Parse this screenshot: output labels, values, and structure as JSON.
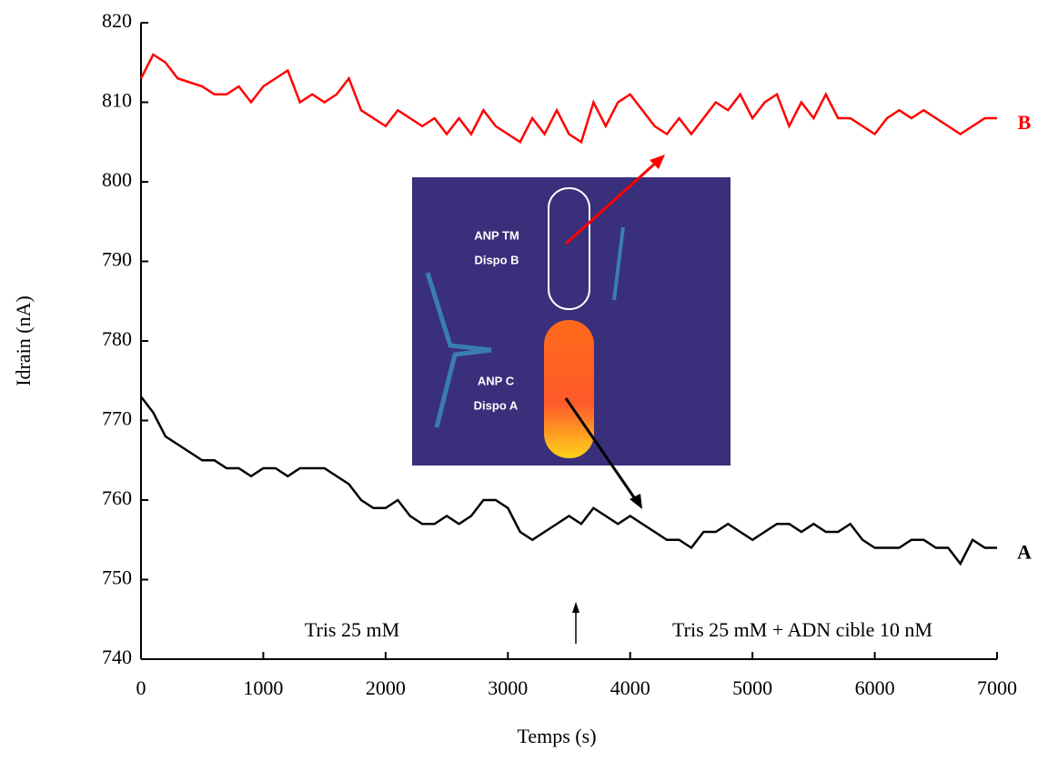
{
  "chart_data": {
    "type": "line",
    "x_label": "Temps (s)",
    "y_label": "Idrain (nA)",
    "x": [
      0,
      100,
      200,
      300,
      400,
      500,
      600,
      700,
      800,
      900,
      1000,
      1100,
      1200,
      1300,
      1400,
      1500,
      1600,
      1700,
      1800,
      1900,
      2000,
      2100,
      2200,
      2300,
      2400,
      2500,
      2600,
      2700,
      2800,
      2900,
      3000,
      3100,
      3200,
      3300,
      3400,
      3500,
      3600,
      3700,
      3800,
      3900,
      4000,
      4100,
      4200,
      4300,
      4400,
      4500,
      4600,
      4700,
      4800,
      4900,
      5000,
      5100,
      5200,
      5300,
      5400,
      5500,
      5600,
      5700,
      5800,
      5900,
      6000,
      6100,
      6200,
      6300,
      6400,
      6500,
      6600,
      6700,
      6800,
      6900,
      7000
    ],
    "series": [
      {
        "name": "B",
        "color": "#ff0000",
        "values": [
          813,
          816,
          815,
          813,
          812.5,
          812,
          811,
          811,
          812,
          810,
          812,
          813,
          814,
          810,
          811,
          810,
          811,
          813,
          809,
          808,
          807,
          809,
          808,
          807,
          808,
          806,
          808,
          806,
          809,
          807,
          806,
          805,
          808,
          806,
          809,
          806,
          805,
          810,
          807,
          810,
          811,
          809,
          807,
          806,
          808,
          806,
          808,
          810,
          809,
          811,
          808,
          810,
          811,
          807,
          810,
          808,
          811,
          808,
          808,
          807,
          806,
          808,
          809,
          808,
          809,
          808,
          807,
          806,
          807,
          808,
          808
        ]
      },
      {
        "name": "A",
        "color": "#000000",
        "values": [
          773,
          771,
          768,
          767,
          766,
          765,
          765,
          764,
          764,
          763,
          764,
          764,
          763,
          764,
          764,
          764,
          763,
          762,
          760,
          759,
          759,
          760,
          758,
          757,
          757,
          758,
          757,
          758,
          760,
          760,
          759,
          756,
          755,
          756,
          757,
          758,
          757,
          759,
          758,
          757,
          758,
          757,
          756,
          755,
          755,
          754,
          756,
          756,
          757,
          756,
          755,
          756,
          757,
          757,
          756,
          757,
          756,
          756,
          757,
          755,
          754,
          754,
          754,
          755,
          755,
          754,
          754,
          752,
          755,
          754,
          754
        ]
      }
    ],
    "xlim": [
      0,
      7000
    ],
    "ylim": [
      740,
      820
    ],
    "xticks": [
      0,
      1000,
      2000,
      3000,
      4000,
      5000,
      6000,
      7000
    ],
    "yticks": [
      740,
      750,
      760,
      770,
      780,
      790,
      800,
      810,
      820
    ],
    "annotations": [
      "Tris 25 mM",
      "Tris 25 mM + ADN cible 10 nM"
    ],
    "inset_labels": [
      "ANP TM",
      "Dispo B",
      "ANP C",
      "Dispo A"
    ]
  }
}
